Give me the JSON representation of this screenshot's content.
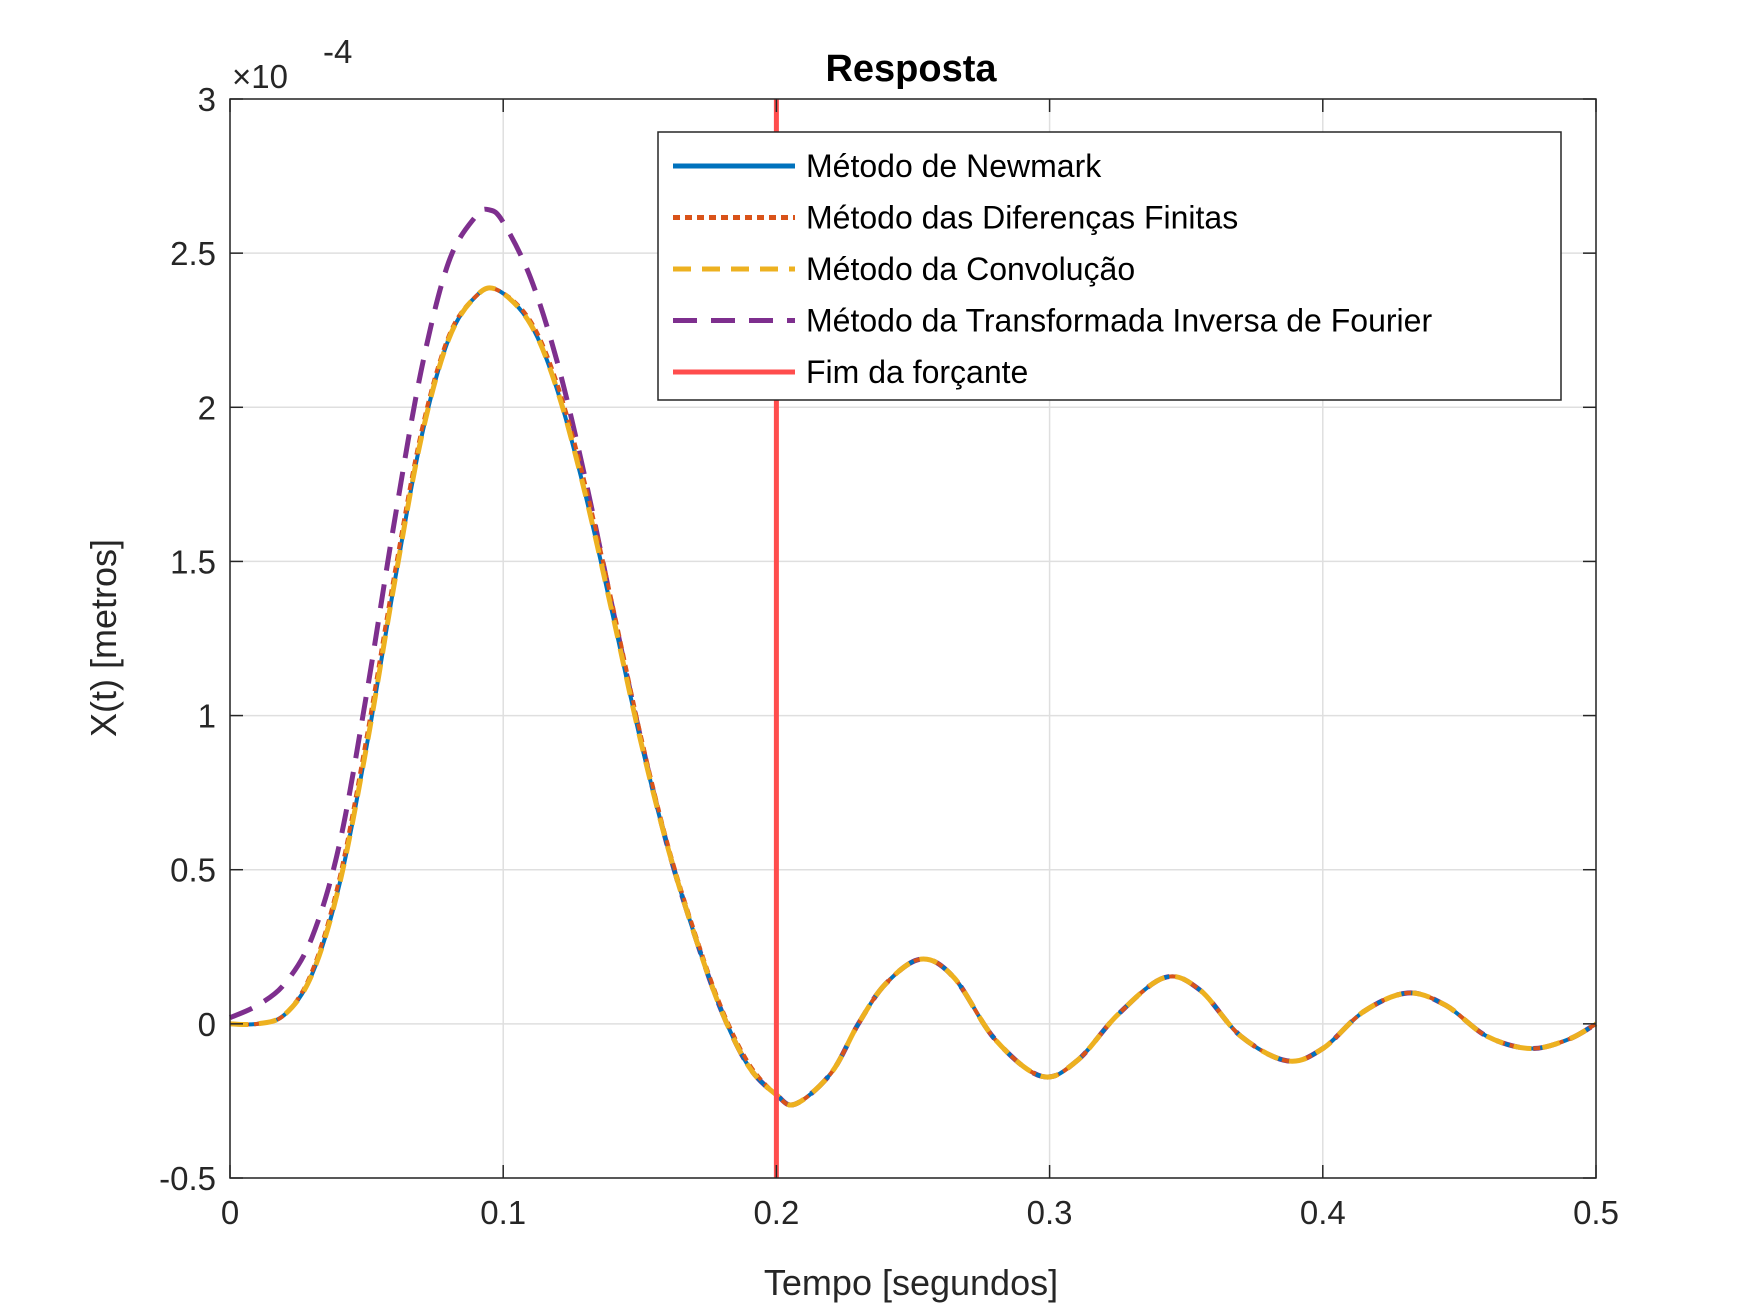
{
  "chart_data": {
    "type": "line",
    "title": "Resposta",
    "xlabel": "Tempo [segundos]",
    "ylabel": "X(t) [metros]",
    "y_multiplier_label": "×10",
    "y_multiplier_exponent": "-4",
    "xlim": [
      0,
      0.5
    ],
    "ylim": [
      -0.5,
      3
    ],
    "xticks": [
      0,
      0.1,
      0.2,
      0.3,
      0.4,
      0.5
    ],
    "xtick_labels": [
      "0",
      "0.1",
      "0.2",
      "0.3",
      "0.4",
      "0.5"
    ],
    "yticks": [
      -0.5,
      0,
      0.5,
      1,
      1.5,
      2,
      2.5,
      3
    ],
    "ytick_labels": [
      "-0.5",
      "0",
      "0.5",
      "1",
      "1.5",
      "2",
      "2.5",
      "3"
    ],
    "grid": true,
    "legend_position": "top-right",
    "series": [
      {
        "name": "Método de Newmark",
        "color": "#0072BD",
        "style": "solid",
        "x": [
          0,
          0.01,
          0.02,
          0.03,
          0.04,
          0.05,
          0.06,
          0.07,
          0.08,
          0.09,
          0.098,
          0.11,
          0.12,
          0.13,
          0.14,
          0.15,
          0.16,
          0.17,
          0.18,
          0.19,
          0.2,
          0.207,
          0.22,
          0.23,
          0.24,
          0.253,
          0.265,
          0.28,
          0.297,
          0.31,
          0.325,
          0.342,
          0.355,
          0.37,
          0.387,
          0.4,
          0.415,
          0.431,
          0.445,
          0.46,
          0.476,
          0.49,
          0.5
        ],
        "values": [
          0.0,
          0.0,
          0.03,
          0.16,
          0.45,
          0.9,
          1.42,
          1.9,
          2.22,
          2.36,
          2.38,
          2.27,
          2.05,
          1.72,
          1.33,
          0.93,
          0.58,
          0.29,
          0.04,
          -0.14,
          -0.23,
          -0.26,
          -0.16,
          0.0,
          0.13,
          0.21,
          0.15,
          -0.05,
          -0.17,
          -0.12,
          0.03,
          0.15,
          0.11,
          -0.04,
          -0.12,
          -0.08,
          0.04,
          0.1,
          0.06,
          -0.04,
          -0.08,
          -0.05,
          0.0
        ]
      },
      {
        "name": "Método das Diferenças Finitas",
        "color": "#D95319",
        "style": "dotted",
        "x": [
          0,
          0.01,
          0.02,
          0.03,
          0.04,
          0.05,
          0.06,
          0.07,
          0.08,
          0.09,
          0.098,
          0.11,
          0.12,
          0.13,
          0.14,
          0.15,
          0.16,
          0.17,
          0.18,
          0.19,
          0.2,
          0.207,
          0.22,
          0.23,
          0.24,
          0.253,
          0.265,
          0.28,
          0.297,
          0.31,
          0.325,
          0.342,
          0.355,
          0.37,
          0.387,
          0.4,
          0.415,
          0.431,
          0.445,
          0.46,
          0.476,
          0.49,
          0.5
        ],
        "values": [
          0.0,
          0.0,
          0.03,
          0.17,
          0.47,
          0.93,
          1.45,
          1.92,
          2.23,
          2.36,
          2.38,
          2.28,
          2.07,
          1.75,
          1.36,
          0.95,
          0.59,
          0.3,
          0.05,
          -0.13,
          -0.23,
          -0.26,
          -0.16,
          0.0,
          0.13,
          0.21,
          0.15,
          -0.05,
          -0.17,
          -0.12,
          0.03,
          0.15,
          0.11,
          -0.04,
          -0.12,
          -0.08,
          0.04,
          0.1,
          0.06,
          -0.04,
          -0.08,
          -0.05,
          0.0
        ]
      },
      {
        "name": "Método da Convolução",
        "color": "#EDB120",
        "style": "dashed",
        "x": [
          0,
          0.01,
          0.02,
          0.03,
          0.04,
          0.05,
          0.06,
          0.07,
          0.08,
          0.09,
          0.098,
          0.11,
          0.12,
          0.13,
          0.14,
          0.15,
          0.16,
          0.17,
          0.18,
          0.19,
          0.2,
          0.207,
          0.22,
          0.23,
          0.24,
          0.253,
          0.265,
          0.28,
          0.297,
          0.31,
          0.325,
          0.342,
          0.355,
          0.37,
          0.387,
          0.4,
          0.415,
          0.431,
          0.445,
          0.46,
          0.476,
          0.49,
          0.5
        ],
        "values": [
          0.0,
          0.0,
          0.03,
          0.16,
          0.45,
          0.9,
          1.42,
          1.9,
          2.22,
          2.36,
          2.38,
          2.27,
          2.05,
          1.72,
          1.33,
          0.93,
          0.58,
          0.29,
          0.04,
          -0.14,
          -0.23,
          -0.26,
          -0.16,
          0.0,
          0.13,
          0.21,
          0.15,
          -0.05,
          -0.17,
          -0.12,
          0.03,
          0.15,
          0.11,
          -0.04,
          -0.12,
          -0.08,
          0.04,
          0.1,
          0.06,
          -0.04,
          -0.08,
          -0.05,
          0.0
        ]
      },
      {
        "name": "Método da Transformada Inversa de Fourier",
        "color": "#7E2F8E",
        "style": "dashed",
        "x": [
          0,
          0.01,
          0.02,
          0.03,
          0.04,
          0.05,
          0.06,
          0.07,
          0.08,
          0.09,
          0.095,
          0.1,
          0.11,
          0.12,
          0.13,
          0.14,
          0.15,
          0.16,
          0.17,
          0.18,
          0.19,
          0.2,
          0.207,
          0.22,
          0.23,
          0.24,
          0.253,
          0.265,
          0.28,
          0.297,
          0.31,
          0.325,
          0.342,
          0.355,
          0.37,
          0.387,
          0.4,
          0.415,
          0.431,
          0.445,
          0.46,
          0.476,
          0.49,
          0.5
        ],
        "values": [
          0.02,
          0.06,
          0.13,
          0.28,
          0.58,
          1.07,
          1.62,
          2.12,
          2.47,
          2.62,
          2.64,
          2.6,
          2.42,
          2.14,
          1.77,
          1.35,
          0.94,
          0.58,
          0.29,
          0.04,
          -0.14,
          -0.23,
          -0.26,
          -0.16,
          0.0,
          0.13,
          0.21,
          0.15,
          -0.05,
          -0.17,
          -0.12,
          0.03,
          0.15,
          0.11,
          -0.04,
          -0.12,
          -0.08,
          0.04,
          0.1,
          0.06,
          -0.04,
          -0.08,
          -0.05,
          0.0
        ]
      },
      {
        "name": "Fim da forçante",
        "color": "#FF4D4D",
        "style": "solid",
        "x": [
          0.2,
          0.2
        ],
        "values": [
          -0.5,
          3
        ]
      }
    ]
  }
}
